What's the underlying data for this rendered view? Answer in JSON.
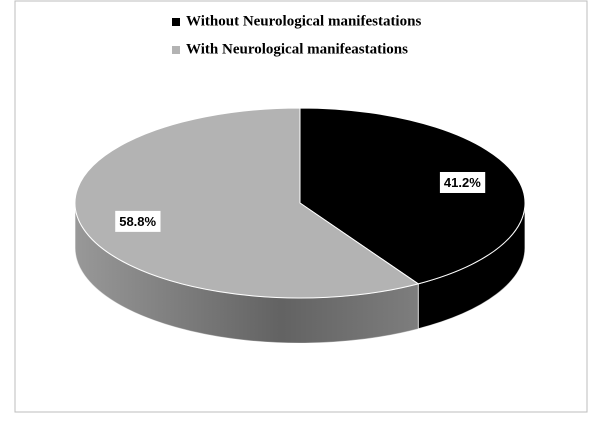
{
  "chart_data": {
    "type": "pie",
    "categories": [
      "Without Neurological manifestations",
      "With Neurological manifeastations"
    ],
    "values": [
      41.2,
      58.8
    ],
    "value_labels": [
      "41.2%",
      "58.8%"
    ],
    "colors": [
      "#000000",
      "#b3b3b3"
    ],
    "legend": "top"
  }
}
